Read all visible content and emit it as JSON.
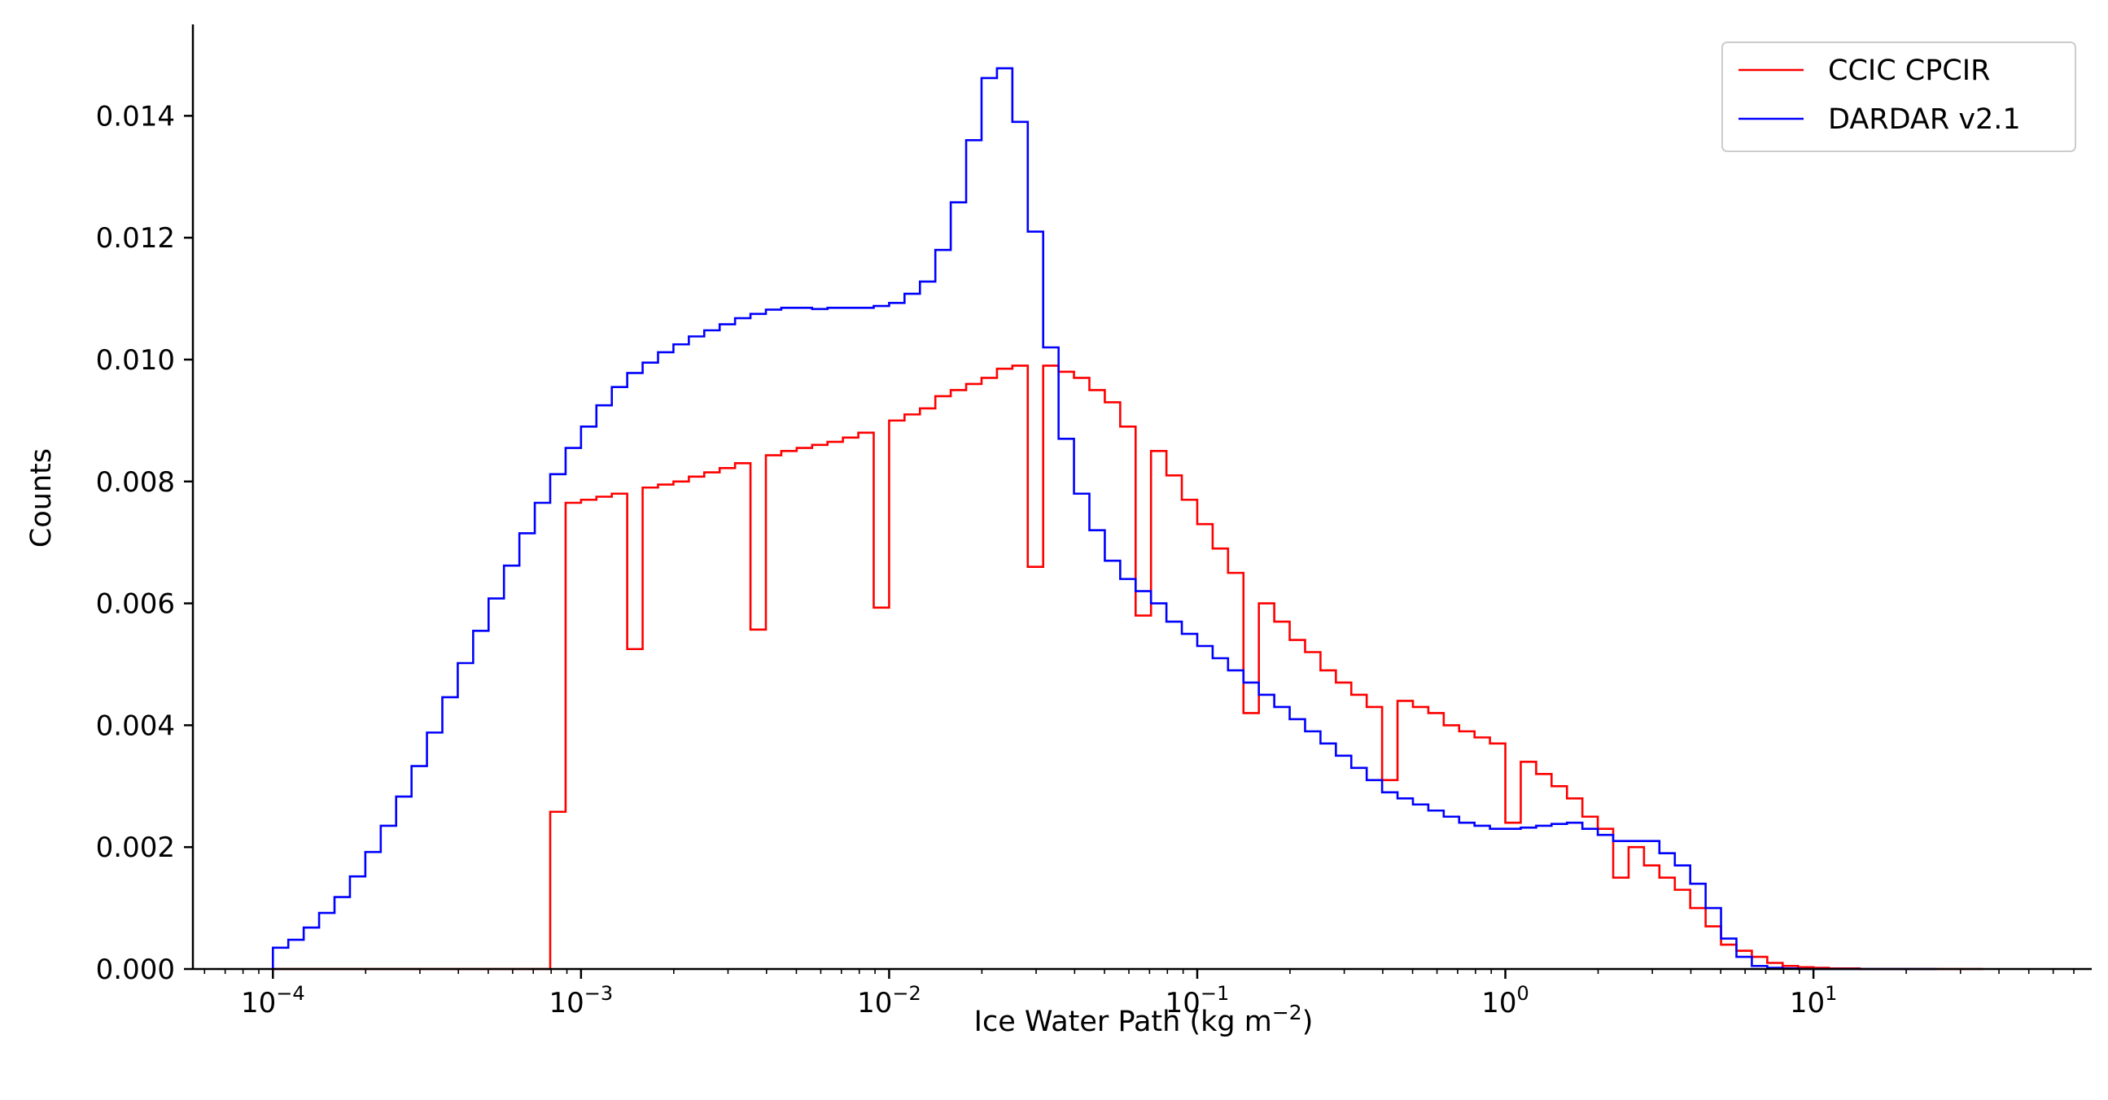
{
  "chart_data": {
    "type": "step-histogram",
    "xlabel": {
      "main": "Ice Water Path (kg m",
      "sup": "−2",
      "tail": ")"
    },
    "ylabel": "Counts",
    "xscale": "log",
    "xlim": [
      5.5e-05,
      80
    ],
    "ylim": [
      0,
      0.0155
    ],
    "yticks": [
      "0.000",
      "0.002",
      "0.004",
      "0.006",
      "0.008",
      "0.010",
      "0.012",
      "0.014"
    ],
    "ytick_values": [
      0,
      0.002,
      0.004,
      0.006,
      0.008,
      0.01,
      0.012,
      0.014
    ],
    "xticks": [
      {
        "value": 0.0001,
        "base": "10",
        "exp": "−4"
      },
      {
        "value": 0.001,
        "base": "10",
        "exp": "−3"
      },
      {
        "value": 0.01,
        "base": "10",
        "exp": "−2"
      },
      {
        "value": 0.1,
        "base": "10",
        "exp": "−1"
      },
      {
        "value": 1,
        "base": "10",
        "exp": "0"
      },
      {
        "value": 10,
        "base": "10",
        "exp": "1"
      }
    ],
    "bin_start": 0.0001,
    "bin_log_width": 0.05,
    "legend_position": "top-right",
    "series": [
      {
        "name": "CCIC CPCIR",
        "color": "#ff0000",
        "values": [
          0,
          0,
          0,
          0,
          0,
          0,
          0,
          0,
          0,
          0,
          0,
          0,
          0,
          0,
          0,
          0,
          0,
          0,
          0.00258,
          0.00765,
          0.0077,
          0.00775,
          0.0078,
          0.00525,
          0.0079,
          0.00795,
          0.008,
          0.00808,
          0.00815,
          0.00822,
          0.0083,
          0.00557,
          0.00843,
          0.0085,
          0.00855,
          0.0086,
          0.00865,
          0.00872,
          0.0088,
          0.00593,
          0.009,
          0.0091,
          0.0092,
          0.0094,
          0.0095,
          0.0096,
          0.0097,
          0.00985,
          0.0099,
          0.0066,
          0.0099,
          0.0098,
          0.0097,
          0.0095,
          0.0093,
          0.0089,
          0.0058,
          0.0085,
          0.0081,
          0.0077,
          0.0073,
          0.0069,
          0.0065,
          0.0042,
          0.006,
          0.0057,
          0.0054,
          0.0052,
          0.0049,
          0.0047,
          0.0045,
          0.0043,
          0.0031,
          0.0044,
          0.0043,
          0.0042,
          0.004,
          0.0039,
          0.0038,
          0.0037,
          0.0024,
          0.0034,
          0.0032,
          0.003,
          0.0028,
          0.0025,
          0.0023,
          0.0015,
          0.002,
          0.0017,
          0.0015,
          0.0013,
          0.001,
          0.0007,
          0.0004,
          0.0003,
          0.0002,
          0.0001,
          5e-05,
          3e-05,
          2e-05,
          1e-05,
          1e-05,
          0,
          0,
          0,
          0,
          0,
          0,
          0,
          0
        ]
      },
      {
        "name": "DARDAR v2.1",
        "color": "#0000ff",
        "values": [
          0.00035,
          0.00048,
          0.00068,
          0.00092,
          0.00118,
          0.00152,
          0.00192,
          0.00235,
          0.00283,
          0.00333,
          0.00388,
          0.00446,
          0.00502,
          0.00555,
          0.00608,
          0.00662,
          0.00715,
          0.00765,
          0.00812,
          0.00855,
          0.0089,
          0.00925,
          0.00955,
          0.00978,
          0.00995,
          0.01012,
          0.01025,
          0.01038,
          0.01048,
          0.01058,
          0.01068,
          0.01075,
          0.01082,
          0.01085,
          0.01085,
          0.01083,
          0.01085,
          0.01085,
          0.01085,
          0.01088,
          0.01093,
          0.01108,
          0.01128,
          0.0118,
          0.01258,
          0.0136,
          0.01462,
          0.01478,
          0.0139,
          0.0121,
          0.0102,
          0.0087,
          0.0078,
          0.0072,
          0.0067,
          0.0064,
          0.0062,
          0.006,
          0.0057,
          0.0055,
          0.0053,
          0.0051,
          0.0049,
          0.0047,
          0.0045,
          0.0043,
          0.0041,
          0.0039,
          0.0037,
          0.0035,
          0.0033,
          0.0031,
          0.0029,
          0.0028,
          0.0027,
          0.0026,
          0.0025,
          0.0024,
          0.00235,
          0.0023,
          0.0023,
          0.00232,
          0.00235,
          0.00238,
          0.0024,
          0.0023,
          0.0022,
          0.0021,
          0.0021,
          0.0021,
          0.0019,
          0.0017,
          0.0014,
          0.001,
          0.0005,
          0.0002,
          5e-05,
          2e-05,
          1e-05,
          0,
          0,
          0,
          0,
          0,
          0,
          0,
          0,
          0
        ]
      }
    ]
  }
}
